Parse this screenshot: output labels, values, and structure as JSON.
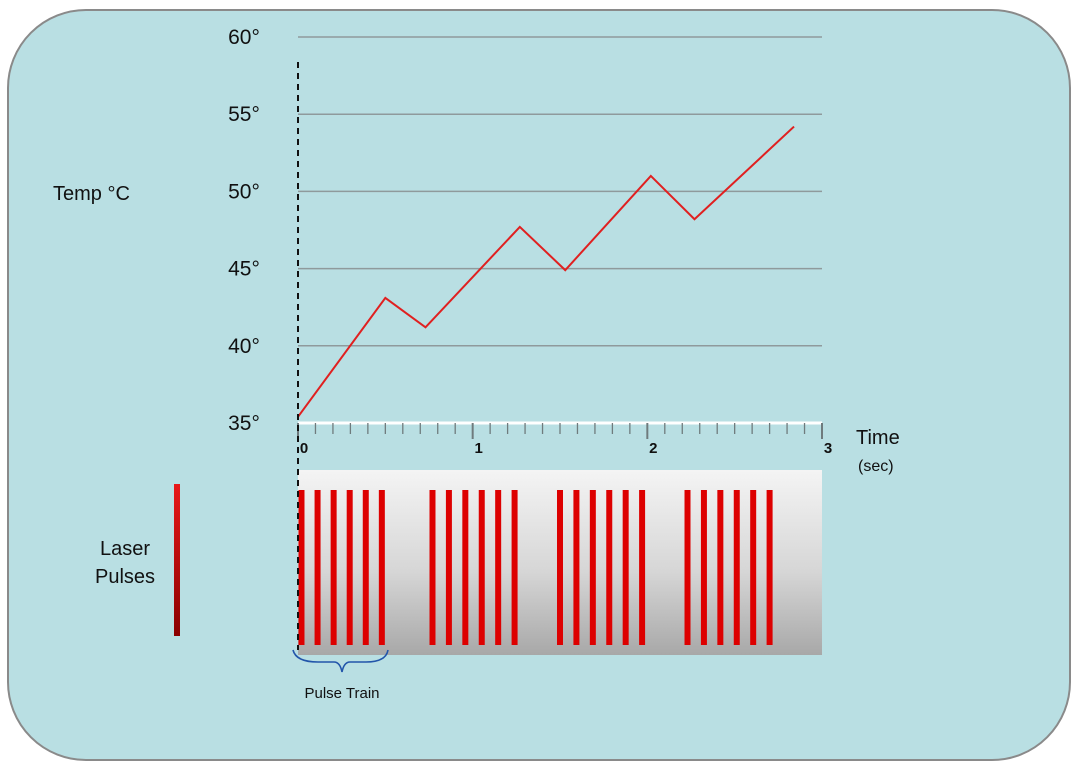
{
  "chart_data": {
    "type": "line",
    "ylabel": "Temp °C",
    "xlabel": "Time",
    "xunit": "(sec)",
    "ylim": [
      35,
      60
    ],
    "xlim": [
      0,
      3
    ],
    "y_ticks": [
      35,
      40,
      45,
      50,
      55,
      60
    ],
    "y_tick_labels": [
      "35°",
      "40°",
      "45°",
      "50°",
      "55°",
      "60°"
    ],
    "x_ticks": [
      0,
      1,
      2,
      3
    ],
    "x_tick_labels": [
      "0",
      "1",
      "2",
      "3"
    ],
    "x_minor_tick_step": 0.1,
    "grid": true,
    "series": [
      {
        "color": "#e02020",
        "x": [
          0,
          0.5,
          0.73,
          1.27,
          1.53,
          2.02,
          2.27,
          2.84
        ],
        "y": [
          35.4,
          43.1,
          41.2,
          47.7,
          44.9,
          51.0,
          48.2,
          54.2
        ]
      }
    ],
    "pulses": {
      "label": "Laser Pulses",
      "color": "#dd0000",
      "trains": [
        {
          "start": 0.02,
          "end": 0.48,
          "count": 6
        },
        {
          "start": 0.77,
          "end": 1.24,
          "count": 6
        },
        {
          "start": 1.5,
          "end": 1.97,
          "count": 6
        },
        {
          "start": 2.23,
          "end": 2.7,
          "count": 6
        }
      ],
      "annotation": "Pulse Train"
    }
  }
}
